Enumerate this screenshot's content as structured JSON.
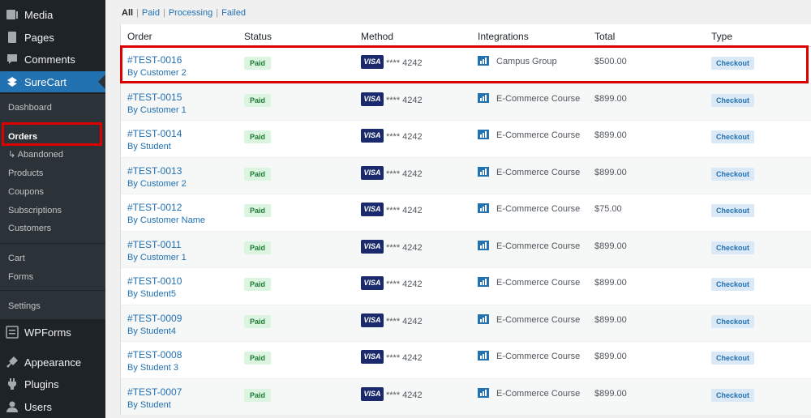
{
  "sidebar": {
    "top_items": [
      {
        "label": "Media",
        "icon": "media-icon"
      },
      {
        "label": "Pages",
        "icon": "pages-icon"
      },
      {
        "label": "Comments",
        "icon": "comments-icon"
      }
    ],
    "surecart_label": "SureCart",
    "submenu": {
      "dashboard": "Dashboard",
      "orders": "Orders",
      "abandoned": "↳ Abandoned",
      "products": "Products",
      "coupons": "Coupons",
      "subscriptions": "Subscriptions",
      "customers": "Customers",
      "cart": "Cart",
      "forms": "Forms",
      "settings": "Settings"
    },
    "bottom_items": [
      {
        "label": "WPForms",
        "icon": "wpforms-icon"
      },
      {
        "label": "Appearance",
        "icon": "appearance-icon"
      },
      {
        "label": "Plugins",
        "icon": "plugins-icon"
      },
      {
        "label": "Users",
        "icon": "users-icon"
      }
    ]
  },
  "filters": {
    "all": "All",
    "paid": "Paid",
    "processing": "Processing",
    "failed": "Failed"
  },
  "table": {
    "headers": {
      "order": "Order",
      "status": "Status",
      "method": "Method",
      "integrations": "Integrations",
      "total": "Total",
      "type": "Type"
    },
    "rows": [
      {
        "order": "#TEST-0016",
        "by": "By Customer 2",
        "status": "Paid",
        "card": "VISA",
        "last4": "**** 4242",
        "integration": "Campus Group",
        "total": "$500.00",
        "type": "Checkout"
      },
      {
        "order": "#TEST-0015",
        "by": "By Customer 1",
        "status": "Paid",
        "card": "VISA",
        "last4": "**** 4242",
        "integration": "E-Commerce Course",
        "total": "$899.00",
        "type": "Checkout"
      },
      {
        "order": "#TEST-0014",
        "by": "By Student",
        "status": "Paid",
        "card": "VISA",
        "last4": "**** 4242",
        "integration": "E-Commerce Course",
        "total": "$899.00",
        "type": "Checkout"
      },
      {
        "order": "#TEST-0013",
        "by": "By Customer 2",
        "status": "Paid",
        "card": "VISA",
        "last4": "**** 4242",
        "integration": "E-Commerce Course",
        "total": "$899.00",
        "type": "Checkout"
      },
      {
        "order": "#TEST-0012",
        "by": "By Customer Name",
        "status": "Paid",
        "card": "VISA",
        "last4": "**** 4242",
        "integration": "E-Commerce Course",
        "total": "$75.00",
        "type": "Checkout"
      },
      {
        "order": "#TEST-0011",
        "by": "By Customer 1",
        "status": "Paid",
        "card": "VISA",
        "last4": "**** 4242",
        "integration": "E-Commerce Course",
        "total": "$899.00",
        "type": "Checkout"
      },
      {
        "order": "#TEST-0010",
        "by": "By Student5",
        "status": "Paid",
        "card": "VISA",
        "last4": "**** 4242",
        "integration": "E-Commerce Course",
        "total": "$899.00",
        "type": "Checkout"
      },
      {
        "order": "#TEST-0009",
        "by": "By Student4",
        "status": "Paid",
        "card": "VISA",
        "last4": "**** 4242",
        "integration": "E-Commerce Course",
        "total": "$899.00",
        "type": "Checkout"
      },
      {
        "order": "#TEST-0008",
        "by": "By Student 3",
        "status": "Paid",
        "card": "VISA",
        "last4": "**** 4242",
        "integration": "E-Commerce Course",
        "total": "$899.00",
        "type": "Checkout"
      },
      {
        "order": "#TEST-0007",
        "by": "By Student",
        "status": "Paid",
        "card": "VISA",
        "last4": "**** 4242",
        "integration": "E-Commerce Course",
        "total": "$899.00",
        "type": "Checkout"
      }
    ]
  },
  "colors": {
    "accent": "#2271b1",
    "sidebar_bg": "#1d2327",
    "highlight": "#dd0000",
    "paid_badge_bg": "#dcf5e0",
    "visa_bg": "#1a2a6c"
  }
}
